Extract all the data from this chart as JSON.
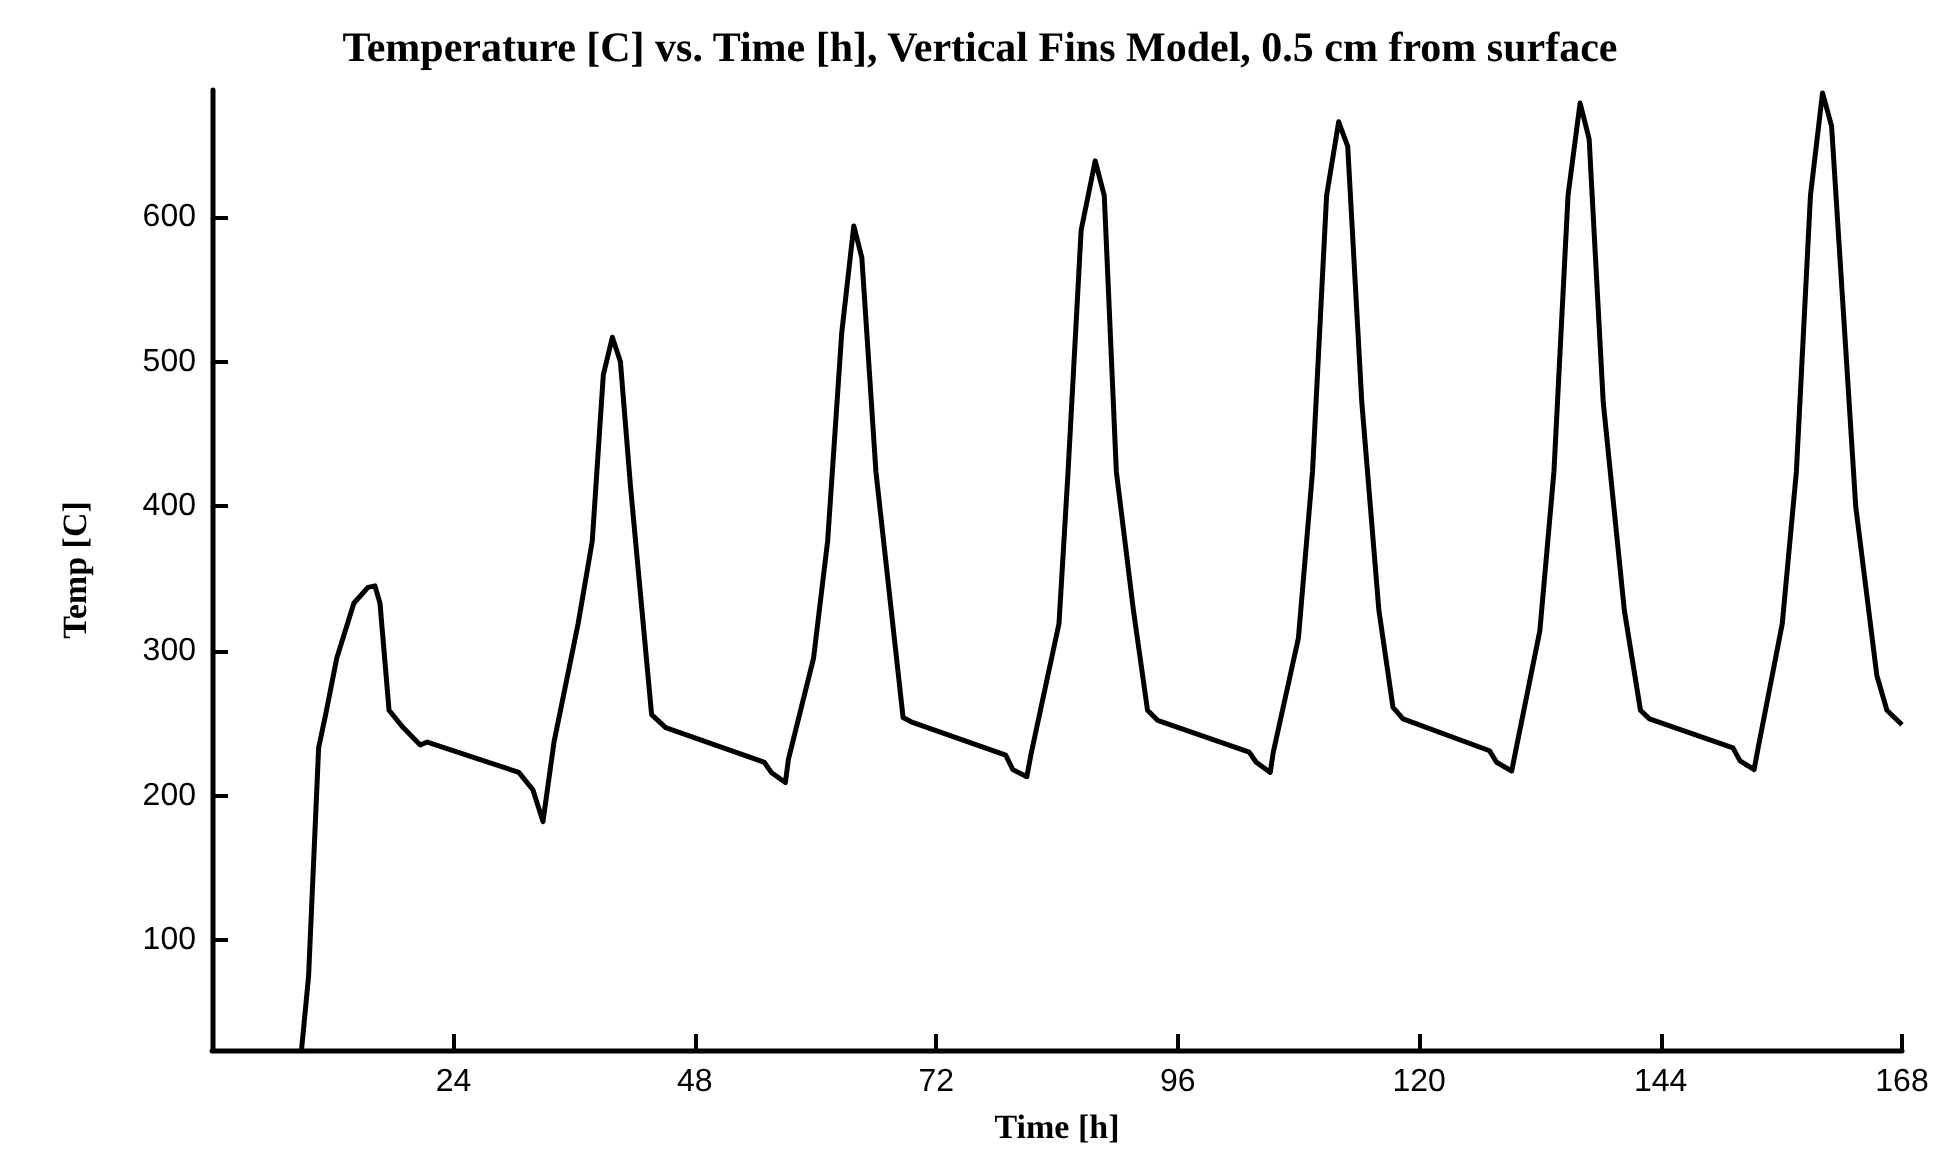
{
  "chart_data": {
    "type": "line",
    "title": "Temperature [C] vs. Time [h], Vertical Fins Model, 0.5 cm from surface",
    "xlabel": "Time [h]",
    "ylabel": "Temp [C]",
    "xlim": [
      0,
      168
    ],
    "xticks": [
      24,
      48,
      72,
      96,
      120,
      144,
      168
    ],
    "ylim": [
      24,
      688
    ],
    "yticks": [
      100,
      200,
      300,
      400,
      500,
      600
    ],
    "marker": "none",
    "line_style": "solid",
    "series": [
      {
        "color": "#000000",
        "x": [
          8.9,
          9.6,
          10.6,
          11.3,
          12.4,
          14.1,
          15.5,
          16.2,
          16.7,
          17.6,
          19.0,
          20.7,
          21.4,
          30.5,
          31.9,
          32.9,
          34.0,
          36.4,
          37.8,
          38.9,
          39.8,
          40.6,
          41.6,
          43.7,
          45.1,
          54.9,
          55.6,
          57.0,
          57.3,
          59.8,
          61.2,
          62.6,
          63.8,
          64.6,
          66.0,
          68.7,
          69.5,
          78.9,
          79.6,
          81.0,
          81.4,
          84.2,
          85.1,
          86.4,
          87.8,
          88.7,
          89.9,
          91.6,
          93.0,
          94.0,
          103.1,
          103.8,
          105.2,
          105.5,
          108.0,
          109.4,
          110.8,
          112.0,
          112.9,
          114.3,
          116.0,
          117.4,
          118.4,
          127.0,
          127.7,
          129.2,
          129.6,
          132.0,
          133.4,
          134.8,
          136.0,
          136.9,
          138.3,
          140.4,
          142.0,
          142.9,
          151.2,
          151.9,
          153.3,
          153.7,
          156.1,
          157.5,
          158.9,
          160.1,
          161.0,
          163.4,
          165.5,
          166.5,
          168
        ],
        "values": [
          24,
          75,
          233,
          256,
          295,
          333,
          344,
          345,
          333,
          259,
          247,
          235,
          237,
          216,
          204,
          182,
          237,
          319,
          376,
          491,
          517,
          500,
          414,
          256,
          247,
          223,
          216,
          209,
          225,
          295,
          376,
          520,
          594,
          572,
          424,
          254,
          251,
          228,
          218,
          213,
          228,
          319,
          424,
          591,
          639,
          615,
          424,
          328,
          259,
          252,
          230,
          223,
          216,
          230,
          309,
          424,
          615,
          666,
          649,
          472,
          328,
          261,
          253,
          231,
          223,
          217,
          231,
          314,
          424,
          615,
          679,
          654,
          472,
          328,
          259,
          253,
          233,
          224,
          218,
          233,
          319,
          424,
          615,
          686,
          663,
          400,
          283,
          259,
          249
        ]
      }
    ]
  }
}
